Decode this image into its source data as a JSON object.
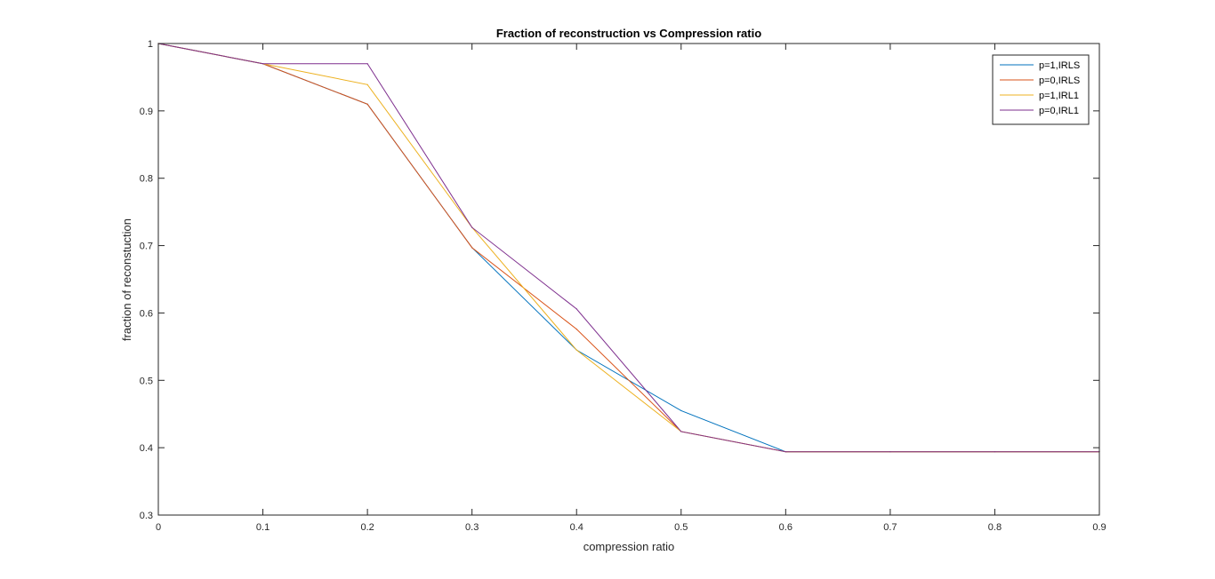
{
  "chart_data": {
    "type": "line",
    "title": "Fraction of reconstruction vs Compression ratio",
    "xlabel": "compression ratio",
    "ylabel": "fraction of reconstuction",
    "xlim": [
      0,
      0.9
    ],
    "ylim": [
      0.3,
      1
    ],
    "xticks": [
      "0",
      "0.1",
      "0.2",
      "0.3",
      "0.4",
      "0.5",
      "0.6",
      "0.7",
      "0.8",
      "0.9"
    ],
    "yticks": [
      "0.3",
      "0.4",
      "0.5",
      "0.6",
      "0.7",
      "0.8",
      "0.9",
      "1"
    ],
    "grid": false,
    "legend_position": "top-right",
    "x": [
      0,
      0.1,
      0.2,
      0.3,
      0.4,
      0.5,
      0.6,
      0.7,
      0.8,
      0.9
    ],
    "series": [
      {
        "name": "p=1,IRLS",
        "color": "#0072BD",
        "values": [
          1.0,
          0.97,
          0.91,
          0.697,
          0.545,
          0.455,
          0.394,
          0.394,
          0.394,
          0.394
        ]
      },
      {
        "name": "p=0,IRLS",
        "color": "#D95319",
        "values": [
          1.0,
          0.97,
          0.91,
          0.697,
          0.576,
          0.424,
          0.394,
          0.394,
          0.394,
          0.394
        ]
      },
      {
        "name": "p=1,IRL1",
        "color": "#EDB120",
        "values": [
          1.0,
          0.97,
          0.939,
          0.727,
          0.545,
          0.424,
          0.394,
          0.394,
          0.394,
          0.394
        ]
      },
      {
        "name": "p=0,IRL1",
        "color": "#7E2F8E",
        "values": [
          1.0,
          0.97,
          0.97,
          0.727,
          0.606,
          0.424,
          0.394,
          0.394,
          0.394,
          0.394
        ]
      }
    ]
  }
}
